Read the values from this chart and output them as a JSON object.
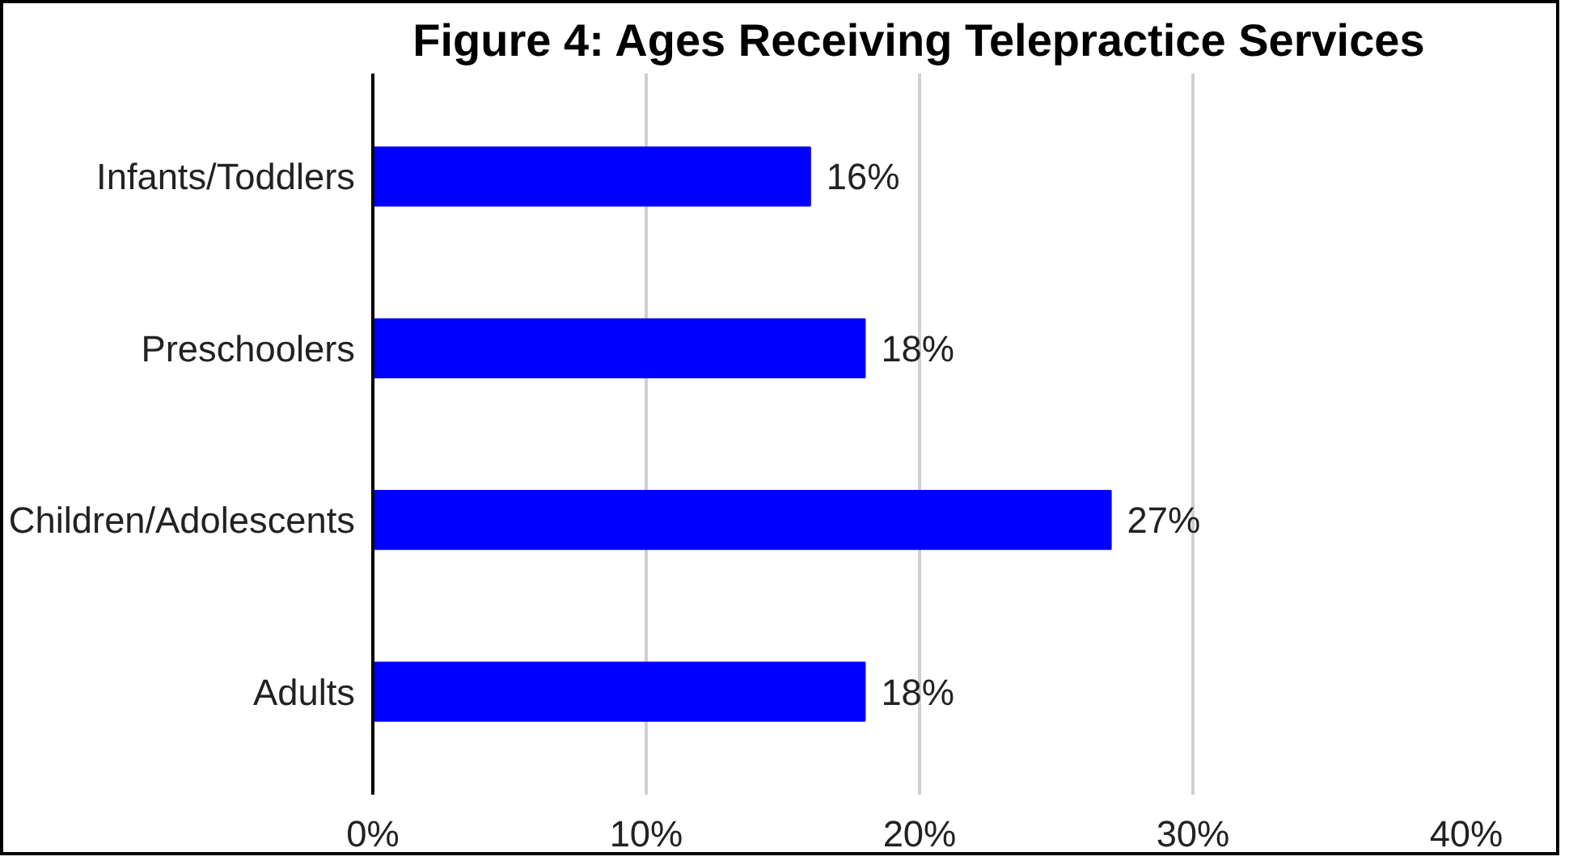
{
  "chart_data": {
    "type": "bar",
    "orientation": "horizontal",
    "title": "Figure 4: Ages Receiving Telepractice Services",
    "categories": [
      "Infants/Toddlers",
      "Preschoolers",
      "Children/Adolescents",
      "Adults"
    ],
    "values": [
      16,
      18,
      27,
      18
    ],
    "color": "#0000ff",
    "value_labels": [
      "16%",
      "18%",
      "27%",
      "18%"
    ],
    "xlim": [
      0,
      40
    ],
    "xticks": [
      {
        "value": 0,
        "label": "0%"
      },
      {
        "value": 10,
        "label": "10%"
      },
      {
        "value": 20,
        "label": "20%"
      },
      {
        "value": 30,
        "label": "30%"
      },
      {
        "value": 40,
        "label": "40%"
      }
    ],
    "grid": "x"
  }
}
